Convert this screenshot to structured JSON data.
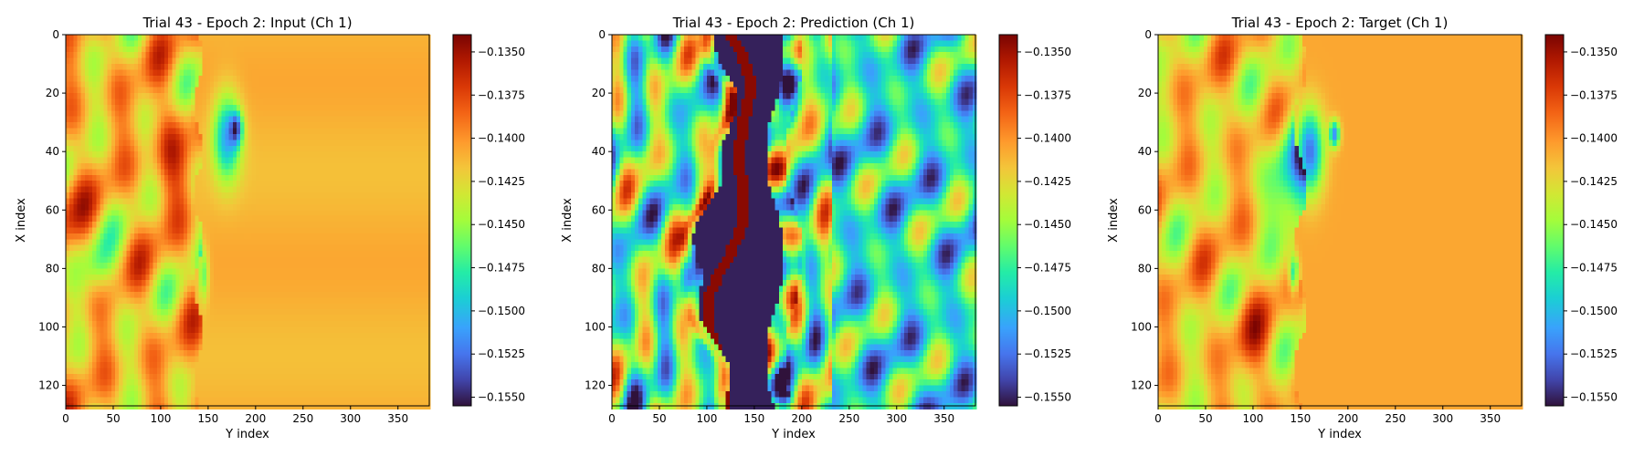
{
  "colormap": "turbo",
  "chart_data": [
    {
      "type": "heatmap",
      "title": "Trial 43 - Epoch 2: Input (Ch 1)",
      "xlabel": "Y index",
      "ylabel": "X index",
      "xlim": [
        0,
        383
      ],
      "ylim": [
        127,
        0
      ],
      "xticks": [
        0,
        50,
        100,
        150,
        200,
        250,
        300,
        350
      ],
      "yticks": [
        0,
        20,
        40,
        60,
        80,
        100,
        120
      ],
      "value_range": [
        -0.1555,
        -0.134
      ],
      "colorbar_ticks": [
        "−0.1350",
        "−0.1375",
        "−0.1400",
        "−0.1425",
        "−0.1450",
        "−0.1475",
        "−0.1500",
        "−0.1525",
        "−0.1550"
      ],
      "colorbar_values": [
        -0.135,
        -0.1375,
        -0.14,
        -0.1425,
        -0.145,
        -0.1475,
        -0.15,
        -0.1525,
        -0.155
      ],
      "grid": false,
      "field": "input"
    },
    {
      "type": "heatmap",
      "title": "Trial 43 - Epoch 2: Prediction (Ch 1)",
      "xlabel": "Y index",
      "ylabel": "X index",
      "xlim": [
        0,
        383
      ],
      "ylim": [
        127,
        0
      ],
      "xticks": [
        0,
        50,
        100,
        150,
        200,
        250,
        300,
        350
      ],
      "yticks": [
        0,
        20,
        40,
        60,
        80,
        100,
        120
      ],
      "value_range": [
        -0.1555,
        -0.134
      ],
      "colorbar_ticks": [
        "−0.1350",
        "−0.1375",
        "−0.1400",
        "−0.1425",
        "−0.1450",
        "−0.1475",
        "−0.1500",
        "−0.1525",
        "−0.1550"
      ],
      "colorbar_values": [
        -0.135,
        -0.1375,
        -0.14,
        -0.1425,
        -0.145,
        -0.1475,
        -0.15,
        -0.1525,
        -0.155
      ],
      "grid": false,
      "field": "prediction"
    },
    {
      "type": "heatmap",
      "title": "Trial 43 - Epoch 2: Target (Ch 1)",
      "xlabel": "Y index",
      "ylabel": "X index",
      "xlim": [
        0,
        383
      ],
      "ylim": [
        127,
        0
      ],
      "xticks": [
        0,
        50,
        100,
        150,
        200,
        250,
        300,
        350
      ],
      "yticks": [
        0,
        20,
        40,
        60,
        80,
        100,
        120
      ],
      "value_range": [
        -0.1555,
        -0.134
      ],
      "colorbar_ticks": [
        "−0.1350",
        "−0.1375",
        "−0.1400",
        "−0.1425",
        "−0.1450",
        "−0.1475",
        "−0.1500",
        "−0.1525",
        "−0.1550"
      ],
      "colorbar_values": [
        -0.135,
        -0.1375,
        -0.14,
        -0.1425,
        -0.145,
        -0.1475,
        -0.15,
        -0.1525,
        -0.155
      ],
      "grid": false,
      "field": "target"
    }
  ]
}
